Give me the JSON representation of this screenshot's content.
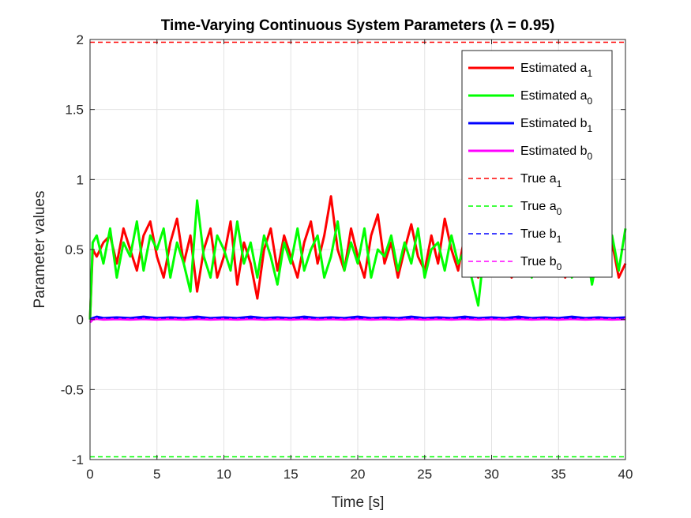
{
  "chart_data": {
    "type": "line",
    "title": "Time-Varying Continuous System Parameters (λ = 0.95)",
    "xlabel": "Time [s]",
    "ylabel": "Parameter values",
    "xlim": [
      0,
      40
    ],
    "ylim": [
      -1,
      2
    ],
    "xticks": [
      0,
      5,
      10,
      15,
      20,
      25,
      30,
      35,
      40
    ],
    "xtick_labels": [
      "0",
      "5",
      "10",
      "15",
      "20",
      "25",
      "30",
      "35",
      "40"
    ],
    "yticks": [
      -1,
      -0.5,
      0,
      0.5,
      1,
      1.5,
      2
    ],
    "ytick_labels": [
      "-1",
      "-0.5",
      "0",
      "0.5",
      "1",
      "1.5",
      "2"
    ],
    "grid": true,
    "legend_position": "top-right",
    "series": [
      {
        "name": "Estimated a1",
        "legend_base": "Estimated a",
        "legend_sub": "1",
        "color": "#ff0000",
        "style": "solid",
        "x": [
          0,
          0.2,
          0.5,
          1,
          1.5,
          2,
          2.5,
          3,
          3.5,
          4,
          4.5,
          5,
          5.5,
          6,
          6.5,
          7,
          7.5,
          8,
          8.5,
          9,
          9.5,
          10,
          10.5,
          11,
          11.5,
          12,
          12.5,
          13,
          13.5,
          14,
          14.5,
          15,
          15.5,
          16,
          16.5,
          17,
          17.5,
          18,
          18.5,
          19,
          19.5,
          20,
          20.5,
          21,
          21.5,
          22,
          22.5,
          23,
          23.5,
          24,
          24.5,
          25,
          25.5,
          26,
          26.5,
          27,
          27.5,
          28,
          28.5,
          29,
          29.5,
          30,
          30.5,
          31,
          31.5,
          32,
          32.5,
          33,
          33.5,
          34,
          34.5,
          35,
          35.5,
          36,
          36.5,
          37,
          37.5,
          38,
          38.5,
          39,
          39.5,
          40
        ],
        "y": [
          0,
          0.5,
          0.45,
          0.55,
          0.6,
          0.4,
          0.65,
          0.5,
          0.35,
          0.6,
          0.7,
          0.45,
          0.3,
          0.55,
          0.72,
          0.4,
          0.6,
          0.2,
          0.5,
          0.65,
          0.3,
          0.45,
          0.7,
          0.25,
          0.55,
          0.4,
          0.15,
          0.5,
          0.65,
          0.35,
          0.6,
          0.45,
          0.3,
          0.55,
          0.7,
          0.4,
          0.6,
          0.88,
          0.5,
          0.35,
          0.65,
          0.45,
          0.3,
          0.6,
          0.75,
          0.4,
          0.55,
          0.3,
          0.5,
          0.68,
          0.45,
          0.35,
          0.6,
          0.4,
          0.72,
          0.5,
          0.35,
          0.6,
          0.45,
          0.3,
          0.55,
          0.65,
          0.4,
          0.5,
          0.3,
          0.6,
          0.45,
          0.7,
          0.35,
          0.55,
          0.4,
          0.6,
          0.3,
          0.5,
          0.65,
          0.4,
          0.75,
          0.45,
          0.35,
          0.55,
          0.3,
          0.4
        ]
      },
      {
        "name": "Estimated a0",
        "legend_base": "Estimated a",
        "legend_sub": "0",
        "color": "#00ff00",
        "style": "solid",
        "x": [
          0,
          0.2,
          0.5,
          1,
          1.5,
          2,
          2.5,
          3,
          3.5,
          4,
          4.5,
          5,
          5.5,
          6,
          6.5,
          7,
          7.5,
          8,
          8.5,
          9,
          9.5,
          10,
          10.5,
          11,
          11.5,
          12,
          12.5,
          13,
          13.5,
          14,
          14.5,
          15,
          15.5,
          16,
          16.5,
          17,
          17.5,
          18,
          18.5,
          19,
          19.5,
          20,
          20.5,
          21,
          21.5,
          22,
          22.5,
          23,
          23.5,
          24,
          24.5,
          25,
          25.5,
          26,
          26.5,
          27,
          27.5,
          28,
          28.5,
          29,
          29.5,
          30,
          30.5,
          31,
          31.5,
          32,
          32.5,
          33,
          33.5,
          34,
          34.5,
          35,
          35.5,
          36,
          36.5,
          37,
          37.5,
          38,
          38.5,
          39,
          39.5,
          40
        ],
        "y": [
          0,
          0.55,
          0.6,
          0.4,
          0.65,
          0.3,
          0.55,
          0.45,
          0.7,
          0.35,
          0.6,
          0.5,
          0.65,
          0.3,
          0.55,
          0.4,
          0.2,
          0.85,
          0.45,
          0.3,
          0.6,
          0.5,
          0.35,
          0.7,
          0.4,
          0.55,
          0.3,
          0.6,
          0.45,
          0.25,
          0.55,
          0.4,
          0.65,
          0.35,
          0.5,
          0.6,
          0.3,
          0.45,
          0.7,
          0.35,
          0.55,
          0.4,
          0.65,
          0.3,
          0.5,
          0.45,
          0.6,
          0.35,
          0.55,
          0.4,
          0.65,
          0.3,
          0.5,
          0.55,
          0.35,
          0.6,
          0.4,
          0.5,
          0.3,
          0.1,
          0.55,
          0.45,
          0.6,
          0.35,
          0.5,
          0.4,
          0.65,
          0.3,
          0.55,
          0.45,
          0.35,
          0.6,
          0.5,
          0.3,
          0.45,
          0.55,
          0.25,
          0.5,
          0.4,
          0.6,
          0.35,
          0.65
        ]
      },
      {
        "name": "Estimated b1",
        "legend_base": "Estimated b",
        "legend_sub": "1",
        "color": "#0000ff",
        "style": "solid",
        "x": [
          0,
          0.2,
          0.5,
          1,
          2,
          3,
          4,
          5,
          6,
          7,
          8,
          9,
          10,
          11,
          12,
          13,
          14,
          15,
          16,
          17,
          18,
          19,
          20,
          21,
          22,
          23,
          24,
          25,
          26,
          27,
          28,
          29,
          30,
          31,
          32,
          33,
          34,
          35,
          36,
          37,
          38,
          39,
          40
        ],
        "y": [
          0,
          0.01,
          0.02,
          0.01,
          0.015,
          0.01,
          0.02,
          0.01,
          0.015,
          0.01,
          0.02,
          0.01,
          0.015,
          0.01,
          0.02,
          0.01,
          0.015,
          0.01,
          0.02,
          0.01,
          0.015,
          0.01,
          0.02,
          0.01,
          0.015,
          0.01,
          0.02,
          0.01,
          0.015,
          0.01,
          0.02,
          0.01,
          0.015,
          0.01,
          0.02,
          0.01,
          0.015,
          0.01,
          0.02,
          0.01,
          0.015,
          0.01,
          0.015
        ]
      },
      {
        "name": "Estimated b0",
        "legend_base": "Estimated b",
        "legend_sub": "0",
        "color": "#ff00ff",
        "style": "solid",
        "x": [
          0,
          0.2,
          0.5,
          1,
          2,
          3,
          4,
          5,
          6,
          7,
          8,
          9,
          10,
          11,
          12,
          13,
          14,
          15,
          16,
          17,
          18,
          19,
          20,
          21,
          22,
          23,
          24,
          25,
          26,
          27,
          28,
          29,
          30,
          31,
          32,
          33,
          34,
          35,
          36,
          37,
          38,
          39,
          40
        ],
        "y": [
          -0.02,
          0,
          0.005,
          0,
          0.003,
          0,
          0.004,
          0,
          0.003,
          0,
          0.004,
          0,
          0.003,
          0,
          0.004,
          0,
          0.003,
          0,
          0.004,
          0,
          0.003,
          0,
          0.004,
          0,
          0.003,
          0,
          0.004,
          0,
          0.003,
          0,
          0.004,
          0,
          0.003,
          0,
          0.004,
          0,
          0.003,
          0,
          0.004,
          0,
          0.003,
          0,
          0.003
        ]
      },
      {
        "name": "True a1",
        "legend_base": "True a",
        "legend_sub": "1",
        "color": "#ff0000",
        "style": "dashed",
        "x": [
          0,
          40
        ],
        "y": [
          1.98,
          1.98
        ]
      },
      {
        "name": "True a0",
        "legend_base": "True a",
        "legend_sub": "0",
        "color": "#00ff00",
        "style": "dashed",
        "x": [
          0,
          40
        ],
        "y": [
          -0.98,
          -0.98
        ]
      },
      {
        "name": "True b1",
        "legend_base": "True b",
        "legend_sub": "1",
        "color": "#0000ff",
        "style": "dashed",
        "x": [
          0,
          40
        ],
        "y": [
          0.01,
          0.01
        ]
      },
      {
        "name": "True b0",
        "legend_base": "True b",
        "legend_sub": "0",
        "color": "#ff00ff",
        "style": "dashed",
        "x": [
          0,
          40
        ],
        "y": [
          0,
          0
        ]
      }
    ]
  }
}
